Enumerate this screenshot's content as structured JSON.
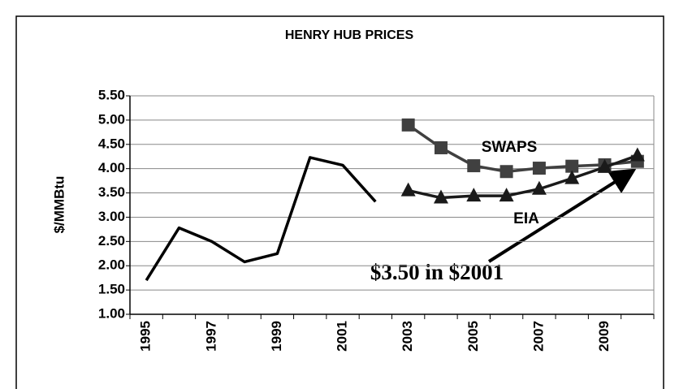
{
  "chart_data": {
    "type": "line",
    "title": "HENRY HUB PRICES",
    "y_label": "$/MMBtu",
    "categories": [
      "1995",
      null,
      "1997",
      null,
      "1999",
      null,
      "2001",
      null,
      "2003",
      null,
      "2005",
      null,
      "2007",
      null,
      "2009",
      null
    ],
    "series": [
      {
        "color": "#000000",
        "marker": "none",
        "values": [
          1.7,
          2.78,
          2.5,
          2.08,
          2.25,
          4.23,
          4.07,
          3.32,
          null,
          null,
          null,
          null,
          null,
          null,
          null,
          null
        ]
      },
      {
        "name": "SWAPS",
        "color": "#404040",
        "marker": "square",
        "values": [
          null,
          null,
          null,
          null,
          null,
          null,
          null,
          null,
          4.9,
          4.43,
          4.06,
          3.94,
          4.01,
          4.05,
          4.08,
          4.15
        ]
      },
      {
        "name": "EIA",
        "color": "#1a1a1a",
        "marker": "triangle",
        "values": [
          null,
          null,
          null,
          null,
          null,
          null,
          null,
          null,
          3.55,
          3.4,
          3.44,
          3.44,
          3.58,
          3.8,
          4.03,
          4.27
        ]
      }
    ],
    "ylim": [
      1.0,
      5.5
    ],
    "yticks": [
      {
        "value": 1.0,
        "label": "1.00"
      },
      {
        "value": 1.5,
        "label": "1.50"
      },
      {
        "value": 2.0,
        "label": "2.00"
      },
      {
        "value": 2.5,
        "label": "2.50"
      },
      {
        "value": 3.0,
        "label": "3.00"
      },
      {
        "value": 3.5,
        "label": "3.50"
      },
      {
        "value": 4.0,
        "label": "4.00"
      },
      {
        "value": 4.5,
        "label": "4.50"
      },
      {
        "value": 5.0,
        "label": "5.00"
      },
      {
        "value": 5.5,
        "label": "5.50"
      }
    ],
    "grid": true,
    "annotation": "$3.50 in  $2001"
  }
}
